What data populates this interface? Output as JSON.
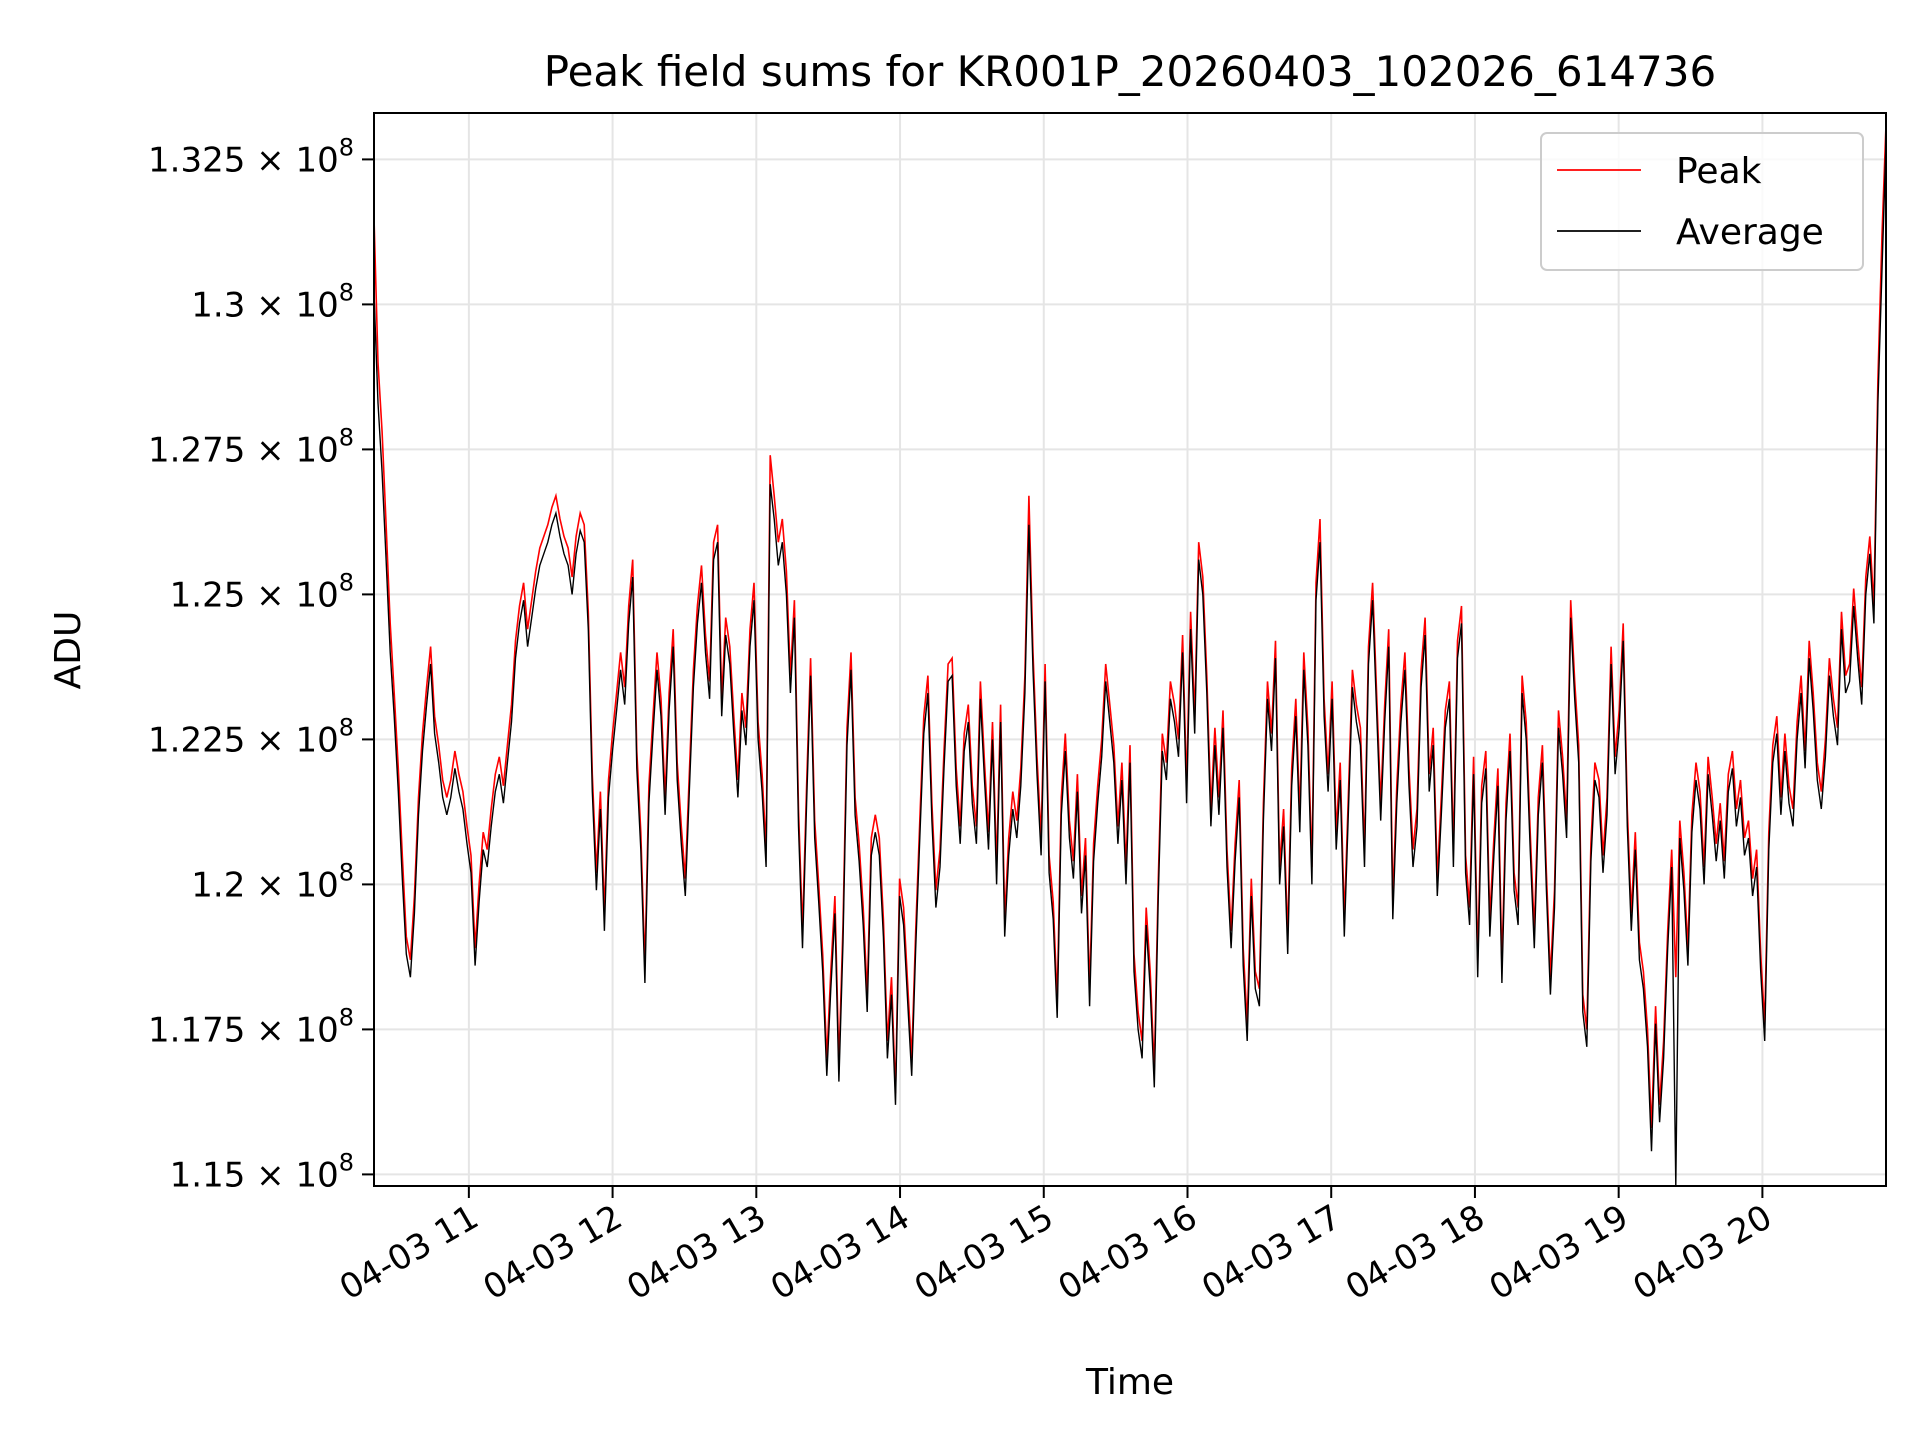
{
  "chart_data": {
    "type": "line",
    "title": "Peak field sums for KR001P_20260403_102026_614736",
    "xlabel": "Time",
    "ylabel": "ADU",
    "x_start_hours": 10.34,
    "x_end_hours": 20.86,
    "xlim_hours": [
      10.34,
      20.86
    ],
    "ylim": [
      114800000,
      133300000
    ],
    "grid": true,
    "legend_position": "top-right",
    "x_ticks": [
      {
        "hour": 11,
        "label": "04-03 11"
      },
      {
        "hour": 12,
        "label": "04-03 12"
      },
      {
        "hour": 13,
        "label": "04-03 13"
      },
      {
        "hour": 14,
        "label": "04-03 14"
      },
      {
        "hour": 15,
        "label": "04-03 15"
      },
      {
        "hour": 16,
        "label": "04-03 16"
      },
      {
        "hour": 17,
        "label": "04-03 17"
      },
      {
        "hour": 18,
        "label": "04-03 18"
      },
      {
        "hour": 19,
        "label": "04-03 19"
      },
      {
        "hour": 20,
        "label": "04-03 20"
      }
    ],
    "y_ticks": [
      {
        "value": 115000000,
        "mantissa": "1.15",
        "exponent": "8"
      },
      {
        "value": 117500000,
        "mantissa": "1.175",
        "exponent": "8"
      },
      {
        "value": 120000000,
        "mantissa": "1.2",
        "exponent": "8"
      },
      {
        "value": 122500000,
        "mantissa": "1.225",
        "exponent": "8"
      },
      {
        "value": 125000000,
        "mantissa": "1.25",
        "exponent": "8"
      },
      {
        "value": 127500000,
        "mantissa": "1.275",
        "exponent": "8"
      },
      {
        "value": 130000000,
        "mantissa": "1.3",
        "exponent": "8"
      },
      {
        "value": 132500000,
        "mantissa": "1.325",
        "exponent": "8"
      }
    ],
    "series": [
      {
        "name": "Peak",
        "color": "#ff0000",
        "values": [
          131500000,
          129000000,
          127800000,
          126200000,
          124500000,
          123300000,
          122000000,
          120500000,
          119100000,
          118700000,
          119800000,
          121500000,
          122600000,
          123400000,
          124100000,
          122900000,
          122400000,
          121800000,
          121500000,
          121800000,
          122300000,
          121900000,
          121600000,
          121000000,
          120500000,
          118900000,
          120000000,
          120900000,
          120600000,
          121300000,
          121900000,
          122200000,
          121700000,
          122400000,
          123100000,
          124200000,
          124800000,
          125200000,
          124400000,
          124900000,
          125400000,
          125800000,
          126000000,
          126200000,
          126500000,
          126700000,
          126300000,
          126000000,
          125800000,
          125300000,
          126000000,
          126400000,
          126200000,
          124700000,
          121900000,
          120200000,
          121600000,
          119500000,
          121800000,
          122600000,
          123300000,
          124000000,
          123400000,
          124800000,
          125600000,
          122300000,
          120900000,
          118600000,
          121700000,
          122900000,
          124000000,
          123200000,
          121500000,
          123300000,
          124400000,
          122100000,
          121000000,
          120100000,
          121900000,
          123700000,
          124800000,
          125500000,
          124300000,
          123500000,
          125900000,
          126200000,
          123200000,
          124600000,
          124100000,
          122900000,
          121800000,
          123300000,
          122700000,
          124400000,
          125200000,
          122800000,
          121900000,
          120600000,
          127400000,
          126700000,
          125900000,
          126300000,
          125400000,
          123600000,
          124900000,
          121300000,
          119200000,
          121700000,
          123900000,
          121100000,
          120000000,
          118800000,
          117000000,
          118500000,
          119800000,
          116900000,
          119300000,
          122700000,
          124000000,
          121500000,
          120700000,
          119600000,
          118100000,
          120800000,
          121200000,
          120800000,
          119400000,
          117300000,
          118400000,
          116400000,
          120100000,
          119600000,
          118300000,
          117000000,
          119200000,
          121100000,
          122900000,
          123600000,
          121400000,
          119900000,
          120600000,
          122300000,
          123800000,
          123900000,
          122000000,
          121000000,
          122600000,
          123100000,
          121700000,
          121000000,
          123500000,
          122100000,
          120900000,
          122800000,
          120300000,
          123100000,
          119400000,
          120800000,
          121600000,
          121100000,
          122000000,
          123600000,
          126700000,
          124000000,
          122200000,
          120800000,
          123800000,
          120500000,
          119700000,
          118000000,
          121500000,
          122600000,
          121100000,
          120400000,
          121900000,
          119800000,
          120800000,
          118200000,
          120700000,
          121700000,
          122500000,
          123800000,
          123100000,
          122400000,
          121000000,
          122100000,
          120300000,
          122400000,
          118800000,
          117800000,
          117300000,
          119600000,
          118500000,
          116800000,
          120100000,
          122600000,
          122100000,
          123500000,
          123100000,
          122500000,
          124300000,
          121700000,
          124700000,
          122900000,
          125900000,
          125300000,
          123600000,
          121300000,
          122700000,
          121500000,
          123000000,
          120600000,
          119200000,
          120700000,
          121800000,
          118900000,
          117600000,
          120100000,
          118500000,
          118200000,
          121400000,
          123500000,
          122600000,
          124200000,
          120300000,
          121300000,
          119100000,
          122000000,
          123200000,
          121200000,
          124000000,
          122700000,
          120300000,
          125200000,
          126300000,
          123200000,
          121900000,
          123500000,
          120900000,
          122100000,
          119400000,
          121500000,
          123700000,
          123100000,
          122700000,
          120600000,
          124100000,
          125200000,
          123300000,
          121400000,
          123100000,
          124400000,
          119700000,
          121700000,
          123100000,
          124000000,
          122000000,
          120600000,
          121300000,
          123700000,
          124600000,
          121900000,
          122700000,
          120100000,
          121500000,
          123000000,
          123500000,
          120600000,
          124200000,
          124800000,
          120500000,
          119600000,
          122200000,
          118700000,
          121700000,
          122300000,
          119400000,
          120800000,
          122000000,
          118600000,
          121400000,
          122600000,
          120200000,
          119600000,
          123600000,
          122800000,
          120900000,
          119200000,
          121500000,
          122400000,
          120200000,
          118400000,
          119900000,
          123000000,
          122200000,
          121100000,
          124900000,
          123500000,
          122400000,
          118100000,
          117500000,
          120700000,
          122100000,
          121800000,
          120500000,
          121500000,
          124100000,
          122200000,
          123000000,
          124500000,
          121300000,
          119500000,
          120900000,
          119000000,
          118500000,
          117500000,
          115800000,
          117900000,
          116200000,
          117300000,
          119200000,
          120600000,
          118400000,
          121100000,
          120200000,
          118900000,
          121200000,
          122100000,
          121600000,
          120300000,
          122200000,
          121500000,
          120700000,
          121400000,
          120400000,
          121900000,
          122300000,
          121300000,
          121800000,
          120800000,
          121100000,
          120100000,
          120600000,
          118800000,
          117600000,
          120900000,
          122400000,
          122900000,
          121500000,
          122600000,
          121700000,
          121300000,
          122800000,
          123600000,
          122300000,
          124200000,
          123300000,
          122100000,
          121600000,
          122500000,
          123900000,
          123200000,
          122700000,
          124700000,
          123600000,
          123800000,
          125100000,
          124200000,
          123400000,
          125300000,
          126000000,
          124800000,
          128700000,
          131200000,
          133100000
        ]
      },
      {
        "name": "Average",
        "color": "#000000",
        "values": [
          130200000,
          128300000,
          127100000,
          125600000,
          124000000,
          122900000,
          121600000,
          120100000,
          118800000,
          118400000,
          119500000,
          121200000,
          122300000,
          123100000,
          123800000,
          122600000,
          122100000,
          121500000,
          121200000,
          121500000,
          122000000,
          121600000,
          121300000,
          120700000,
          120200000,
          118600000,
          119700000,
          120600000,
          120300000,
          121000000,
          121600000,
          121900000,
          121400000,
          122100000,
          122800000,
          123900000,
          124500000,
          124900000,
          124100000,
          124600000,
          125100000,
          125500000,
          125700000,
          125900000,
          126200000,
          126400000,
          126000000,
          125700000,
          125500000,
          125000000,
          125700000,
          126100000,
          125900000,
          124400000,
          121600000,
          119900000,
          121300000,
          119200000,
          121500000,
          122300000,
          123000000,
          123700000,
          123100000,
          124500000,
          125300000,
          122000000,
          120600000,
          118300000,
          121400000,
          122600000,
          123700000,
          122900000,
          121200000,
          123000000,
          124100000,
          121800000,
          120700000,
          119800000,
          121600000,
          123400000,
          124500000,
          125200000,
          124000000,
          123200000,
          125600000,
          125900000,
          122900000,
          124300000,
          123800000,
          122600000,
          121500000,
          123000000,
          122400000,
          124100000,
          124900000,
          122500000,
          121600000,
          120300000,
          126900000,
          126300000,
          125500000,
          125900000,
          125000000,
          123300000,
          124600000,
          121000000,
          118900000,
          121400000,
          123600000,
          120800000,
          119700000,
          118500000,
          116700000,
          118200000,
          119500000,
          116600000,
          119000000,
          122400000,
          123700000,
          121200000,
          120400000,
          119300000,
          117800000,
          120500000,
          120900000,
          120500000,
          119100000,
          117000000,
          118100000,
          116200000,
          119800000,
          119300000,
          118000000,
          116700000,
          118900000,
          120800000,
          122600000,
          123300000,
          121100000,
          119600000,
          120300000,
          122000000,
          123500000,
          123600000,
          121700000,
          120700000,
          122300000,
          122800000,
          121400000,
          120700000,
          123200000,
          121800000,
          120600000,
          122500000,
          120000000,
          122800000,
          119100000,
          120500000,
          121300000,
          120800000,
          121700000,
          123300000,
          126200000,
          123700000,
          121900000,
          120500000,
          123500000,
          120200000,
          119400000,
          117700000,
          121200000,
          122300000,
          120800000,
          120100000,
          121600000,
          119500000,
          120500000,
          117900000,
          120400000,
          121400000,
          122200000,
          123500000,
          122800000,
          122100000,
          120700000,
          121800000,
          120000000,
          122100000,
          118500000,
          117500000,
          117000000,
          119300000,
          118200000,
          116500000,
          119800000,
          122300000,
          121800000,
          123200000,
          122800000,
          122200000,
          124000000,
          121400000,
          124400000,
          122600000,
          125600000,
          125000000,
          123300000,
          121000000,
          122400000,
          121200000,
          122700000,
          120300000,
          118900000,
          120400000,
          121500000,
          118600000,
          117300000,
          119800000,
          118200000,
          117900000,
          121100000,
          123200000,
          122300000,
          123900000,
          120000000,
          121000000,
          118800000,
          121700000,
          122900000,
          120900000,
          123700000,
          122400000,
          120000000,
          124900000,
          125900000,
          122900000,
          121600000,
          123200000,
          120600000,
          121800000,
          119100000,
          121200000,
          123400000,
          122800000,
          122400000,
          120300000,
          123800000,
          124900000,
          123000000,
          121100000,
          122800000,
          124100000,
          119400000,
          121400000,
          122800000,
          123700000,
          121700000,
          120300000,
          121000000,
          123400000,
          124300000,
          121600000,
          122400000,
          119800000,
          121200000,
          122700000,
          123200000,
          120300000,
          123900000,
          124500000,
          120200000,
          119300000,
          121900000,
          118400000,
          121400000,
          122000000,
          119100000,
          120500000,
          121700000,
          118300000,
          121100000,
          122300000,
          119900000,
          119300000,
          123300000,
          122500000,
          120600000,
          118900000,
          121200000,
          122100000,
          119900000,
          118100000,
          119600000,
          122700000,
          121900000,
          120800000,
          124600000,
          123200000,
          122100000,
          117800000,
          117200000,
          120400000,
          121800000,
          121500000,
          120200000,
          121200000,
          123800000,
          121900000,
          122700000,
          124200000,
          121000000,
          119200000,
          120600000,
          118700000,
          118200000,
          117200000,
          115400000,
          117600000,
          115900000,
          117000000,
          118900000,
          120300000,
          114800000,
          120800000,
          119900000,
          118600000,
          120900000,
          121800000,
          121300000,
          120000000,
          121900000,
          121200000,
          120400000,
          121100000,
          120100000,
          121600000,
          122000000,
          121000000,
          121500000,
          120500000,
          120800000,
          119800000,
          120300000,
          118500000,
          117300000,
          120600000,
          122100000,
          122600000,
          121200000,
          122300000,
          121400000,
          121000000,
          122500000,
          123300000,
          122000000,
          123900000,
          123000000,
          121800000,
          121300000,
          122200000,
          123600000,
          122900000,
          122400000,
          124400000,
          123300000,
          123500000,
          124800000,
          123900000,
          123100000,
          125000000,
          125700000,
          124500000,
          128300000,
          130600000,
          132800000
        ]
      }
    ]
  }
}
